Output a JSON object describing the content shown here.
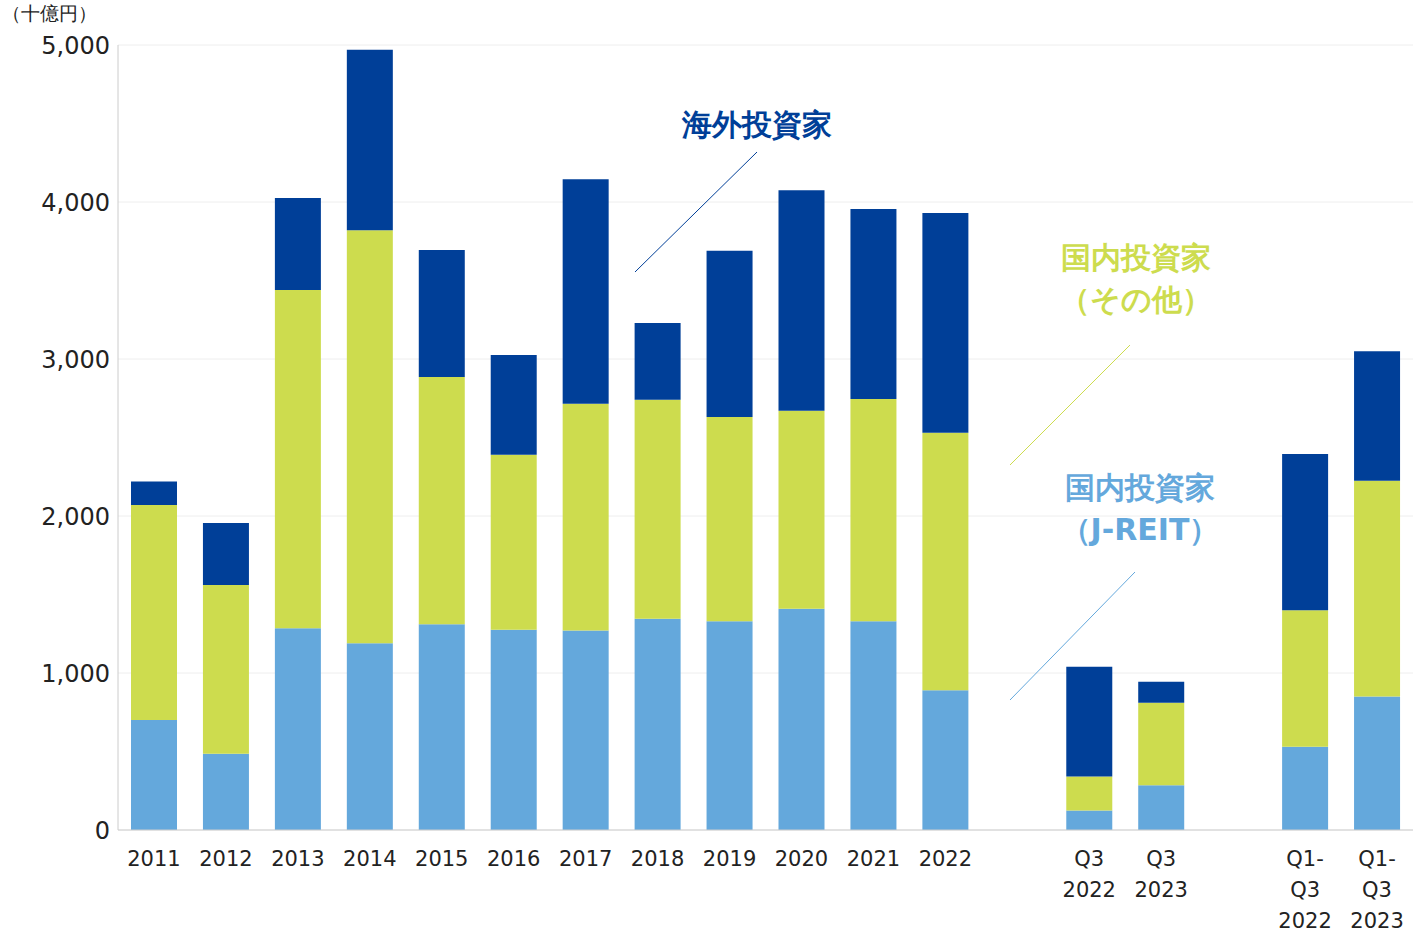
{
  "chart_data": {
    "type": "bar",
    "stacked": true,
    "grid": true,
    "y_label": "（十億円）",
    "categories": [
      "2011",
      "2012",
      "2013",
      "2014",
      "2015",
      "2016",
      "2017",
      "2018",
      "2019",
      "2020",
      "2021",
      "2022",
      null,
      "Q3\n2022",
      "Q3\n2023",
      null,
      "Q1-\nQ3\n2022",
      "Q1-\nQ3\n2023"
    ],
    "series": [
      {
        "name": "国内投資家（J-REIT）",
        "color": "#64a8dc",
        "values": [
          700,
          485,
          1285,
          1190,
          1310,
          1275,
          1270,
          1345,
          1330,
          1410,
          1330,
          890,
          null,
          125,
          285,
          null,
          530,
          850
        ]
      },
      {
        "name": "国内投資家（その他）",
        "color": "#cddc4e",
        "values": [
          1370,
          1075,
          2155,
          2630,
          1575,
          1115,
          1445,
          1395,
          1300,
          1260,
          1415,
          1640,
          null,
          215,
          525,
          null,
          870,
          1375
        ]
      },
      {
        "name": "海外投資家",
        "color": "#003f98",
        "values": [
          150,
          395,
          585,
          1150,
          810,
          635,
          1430,
          490,
          1060,
          1405,
          1210,
          1400,
          null,
          700,
          135,
          null,
          995,
          825
        ]
      }
    ],
    "ylim": [
      0,
      5000
    ],
    "yticks": [
      0,
      {
        "value": 1000,
        "label": "1,000"
      },
      {
        "value": 2000,
        "label": "2,000"
      },
      {
        "value": 3000,
        "label": "3,000"
      },
      {
        "value": 4000,
        "label": "4,000"
      },
      {
        "value": 5000,
        "label": "5,000"
      }
    ]
  }
}
